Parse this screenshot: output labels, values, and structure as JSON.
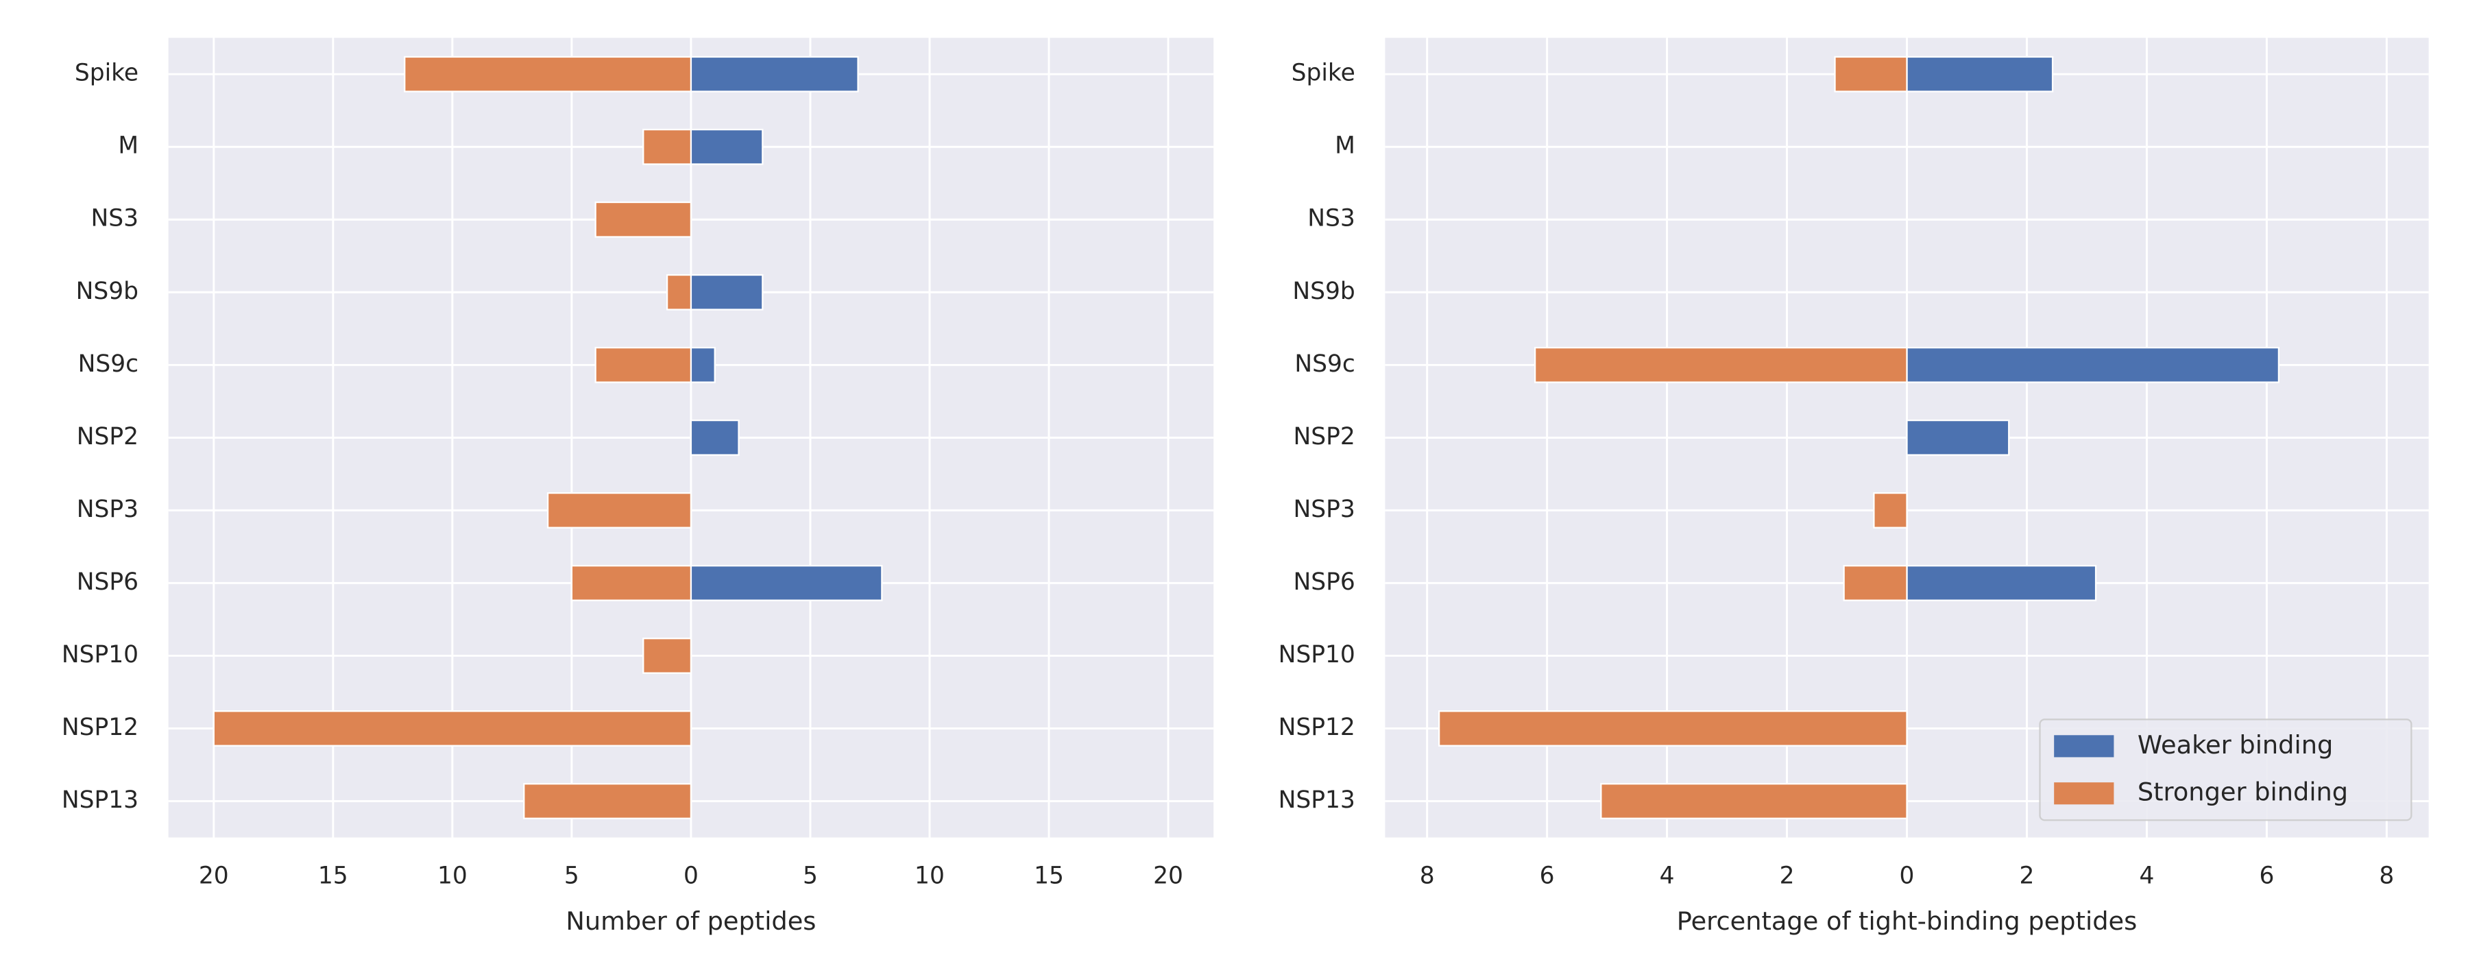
{
  "chart_data": [
    {
      "type": "bar",
      "orientation": "horizontal",
      "categories": [
        "Spike",
        "M",
        "NS3",
        "NS9b",
        "NS9c",
        "NSP2",
        "NSP3",
        "NSP6",
        "NSP10",
        "NSP12",
        "NSP13"
      ],
      "series": [
        {
          "color": "#4c72b0",
          "values": [
            7,
            3,
            0,
            3,
            1,
            2,
            0,
            8,
            0,
            0,
            0
          ]
        },
        {
          "color": "#dd8452",
          "values": [
            -12,
            -2,
            -4,
            -1,
            -4,
            0,
            -6,
            -5,
            -2,
            -20,
            -7
          ]
        }
      ],
      "xlim": [
        -21.9,
        21.9
      ],
      "xticks": [
        {
          "value": -20,
          "label": "20"
        },
        {
          "value": -15,
          "label": "15"
        },
        {
          "value": -10,
          "label": "10"
        },
        {
          "value": -5,
          "label": "5"
        },
        0,
        5,
        10,
        15,
        20
      ],
      "xlabel": "Number of peptides",
      "grid": true
    },
    {
      "type": "bar",
      "orientation": "horizontal",
      "categories": [
        "Spike",
        "M",
        "NS3",
        "NS9b",
        "NS9c",
        "NSP2",
        "NSP3",
        "NSP6",
        "NSP10",
        "NSP12",
        "NSP13"
      ],
      "series": [
        {
          "name": "Weaker binding",
          "color": "#4c72b0",
          "values": [
            2.43,
            0,
            0,
            0,
            6.2,
            1.7,
            0,
            3.15,
            0,
            0,
            0
          ]
        },
        {
          "name": "Stronger binding",
          "color": "#dd8452",
          "values": [
            -1.2,
            0,
            0,
            0,
            -6.2,
            0,
            -0.55,
            -1.05,
            0,
            -7.8,
            -5.1
          ]
        }
      ],
      "xlim": [
        -8.7,
        8.7
      ],
      "xticks": [
        {
          "value": -8,
          "label": "8"
        },
        {
          "value": -6,
          "label": "6"
        },
        {
          "value": -4,
          "label": "4"
        },
        {
          "value": -2,
          "label": "2"
        },
        0,
        2,
        4,
        6,
        8
      ],
      "xlabel": "Percentage of tight-binding peptides",
      "grid": true,
      "legend": "lower right"
    }
  ]
}
